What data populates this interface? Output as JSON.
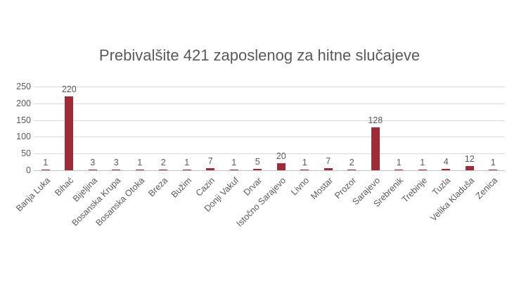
{
  "chart_data": {
    "type": "bar",
    "title": "Prebivalšite 421 zaposlenog za hitne slučajeve",
    "categories": [
      "Banja Luka",
      "Bihać",
      "Bijeljina",
      "Bosanska Krupa",
      "Bosanska Otoka",
      "Breza",
      "Bužim",
      "Cazin",
      "Donji Vakuf",
      "Drvar",
      "Istočno Sarajevo",
      "Livno",
      "Mostar",
      "Prozor",
      "Sarajevo",
      "Srebrenik",
      "Trebinje",
      "Tuzla",
      "Velika Kladuša",
      "Zenica"
    ],
    "values": [
      1,
      220,
      3,
      3,
      1,
      2,
      1,
      7,
      1,
      5,
      20,
      1,
      7,
      2,
      128,
      1,
      1,
      4,
      12,
      1
    ],
    "data_labels_visible": true,
    "xlabel": "",
    "ylabel": "",
    "ylim": [
      0,
      250
    ],
    "yticks": [
      0,
      50,
      100,
      150,
      200,
      250
    ],
    "grid": "horizontal",
    "legend_position": "none",
    "bar_color": "#a12a38",
    "text_color": "#595959",
    "gridline_color": "#d9d9d9",
    "background_color": "#ffffff"
  }
}
